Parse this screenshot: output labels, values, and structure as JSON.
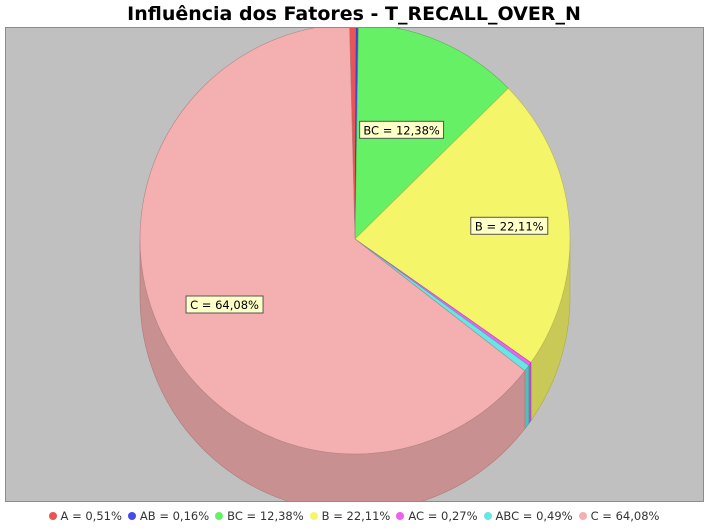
{
  "chart_data": {
    "type": "pie",
    "title": "Influência dos Fatores - T_RECALL_OVER_N",
    "slices": [
      {
        "name": "A",
        "value": 0.51,
        "label": "A = 0,51%",
        "color": "#ea5454"
      },
      {
        "name": "AB",
        "value": 0.16,
        "label": "AB = 0,16%",
        "color": "#4848ee"
      },
      {
        "name": "BC",
        "value": 12.38,
        "label": "BC = 12,38%",
        "color": "#66f066"
      },
      {
        "name": "B",
        "value": 22.11,
        "label": "B = 22,11%",
        "color": "#f5f56a"
      },
      {
        "name": "AC",
        "value": 0.27,
        "label": "AC = 0,27%",
        "color": "#f060f0"
      },
      {
        "name": "ABC",
        "value": 0.49,
        "label": "ABC = 0,49%",
        "color": "#66e6e6"
      },
      {
        "name": "C",
        "value": 64.08,
        "label": "C = 64,08%",
        "color": "#f4b0b0"
      }
    ],
    "data_labels": [
      "BC = 12,38%",
      "B = 22,11%",
      "C = 64,08%"
    ],
    "legend_position": "bottom",
    "background": "#c0c0c0"
  }
}
